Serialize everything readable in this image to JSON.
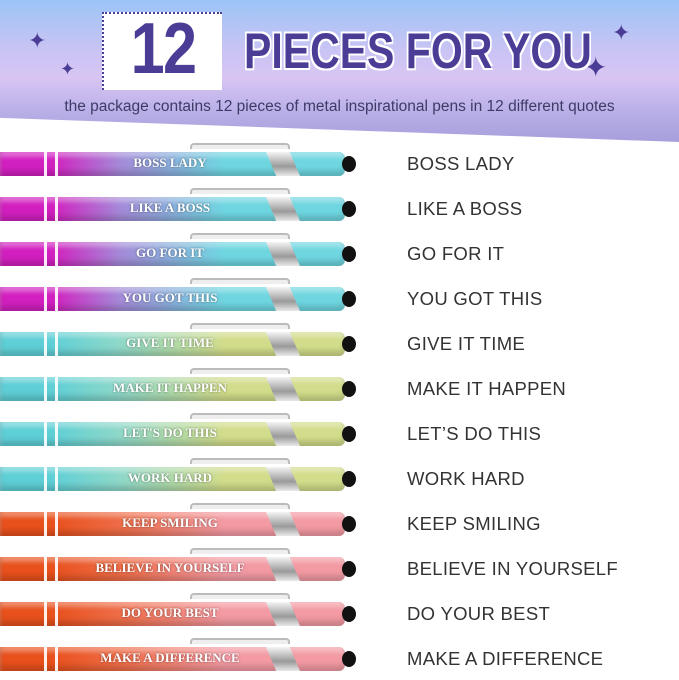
{
  "header": {
    "number": "12",
    "title": "PIECES FOR YOU",
    "subtitle": "the package contains 12 pieces of metal inspirational pens in 12 different quotes",
    "star_icon": "sparkle-star"
  },
  "colors": {
    "title": "#4b3c95",
    "group_purple": [
      "#d21fbf",
      "#a48ad8",
      "#6fd6e0"
    ],
    "group_teal": [
      "#5fcfd6",
      "#8fd8c8",
      "#d2dc8a"
    ],
    "group_orange": [
      "#e8501c",
      "#ee6d48",
      "#f39aa3"
    ]
  },
  "pens": [
    {
      "engraving": "BOSS LADY",
      "quote": "BOSS LADY",
      "group": "purple"
    },
    {
      "engraving": "LIKE A BOSS",
      "quote": "LIKE A BOSS",
      "group": "purple"
    },
    {
      "engraving": "GO FOR IT",
      "quote": "GO FOR IT",
      "group": "purple"
    },
    {
      "engraving": "YOU GOT THIS",
      "quote": "YOU GOT THIS",
      "group": "purple"
    },
    {
      "engraving": "GIVE IT TIME",
      "quote": "GIVE IT TIME",
      "group": "teal"
    },
    {
      "engraving": "MAKE IT HAPPEN",
      "quote": "MAKE IT HAPPEN",
      "group": "teal"
    },
    {
      "engraving": "LET'S DO THIS",
      "quote": "LET’S DO THIS",
      "group": "teal"
    },
    {
      "engraving": "WORK HARD",
      "quote": "WORK HARD",
      "group": "teal"
    },
    {
      "engraving": "KEEP SMILING",
      "quote": "KEEP SMILING",
      "group": "orange"
    },
    {
      "engraving": "BELIEVE IN YOURSELF",
      "quote": "BELIEVE IN YOURSELF",
      "group": "orange"
    },
    {
      "engraving": "DO YOUR BEST",
      "quote": "DO YOUR BEST",
      "group": "orange"
    },
    {
      "engraving": "MAKE A DIFFERENCE",
      "quote": "MAKE A DIFFERENCE",
      "group": "orange"
    }
  ]
}
